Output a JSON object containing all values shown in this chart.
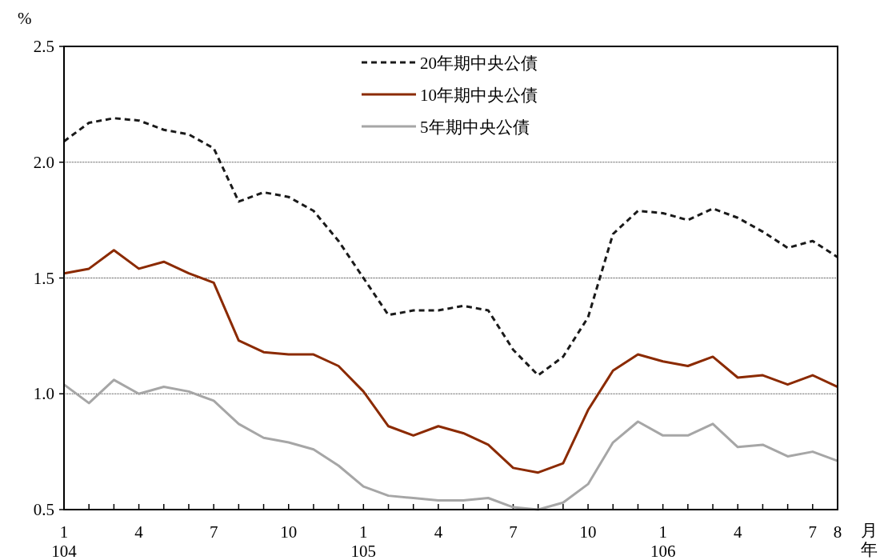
{
  "chart_data": {
    "type": "line",
    "ylabel": "%",
    "xlabel": "月年",
    "categories": [
      "1\n104",
      null,
      null,
      "4",
      null,
      null,
      "7",
      null,
      null,
      "10",
      null,
      null,
      "1\n105",
      null,
      null,
      "4",
      null,
      null,
      "7",
      null,
      null,
      "10",
      null,
      null,
      "1\n106",
      null,
      null,
      "4",
      null,
      null,
      "7",
      "8"
    ],
    "ylim": [
      0.5,
      2.5
    ],
    "yticks": [
      {
        "value": 0.5,
        "label": "0.5"
      },
      {
        "value": 1,
        "label": "1.0"
      },
      {
        "value": 1.5,
        "label": "1.5"
      },
      {
        "value": 2,
        "label": "2.0"
      },
      {
        "value": 2.5,
        "label": "2.5"
      }
    ],
    "grid": "y",
    "legend": "top",
    "series": [
      {
        "name": "20年期中央公債",
        "color": "#1a1a1a",
        "line_style": "dashed",
        "values": [
          2.09,
          2.17,
          2.19,
          2.18,
          2.14,
          2.12,
          2.06,
          1.83,
          1.87,
          1.85,
          1.79,
          1.66,
          1.5,
          1.34,
          1.36,
          1.36,
          1.38,
          1.36,
          1.19,
          1.08,
          1.16,
          1.33,
          1.69,
          1.79,
          1.78,
          1.75,
          1.8,
          1.76,
          1.7,
          1.63,
          1.66,
          1.59
        ]
      },
      {
        "name": "10年期中央公債",
        "color": "#8b2a00",
        "line_style": "solid",
        "values": [
          1.52,
          1.54,
          1.62,
          1.54,
          1.57,
          1.52,
          1.48,
          1.23,
          1.18,
          1.17,
          1.17,
          1.12,
          1.01,
          0.86,
          0.82,
          0.86,
          0.83,
          0.78,
          0.68,
          0.66,
          0.7,
          0.93,
          1.1,
          1.17,
          1.14,
          1.12,
          1.16,
          1.07,
          1.08,
          1.04,
          1.08,
          1.03
        ]
      },
      {
        "name": "5年期中央公債",
        "color": "#a6a6a6",
        "line_style": "solid",
        "values": [
          1.04,
          0.96,
          1.06,
          1.0,
          1.03,
          1.01,
          0.97,
          0.87,
          0.81,
          0.79,
          0.76,
          0.69,
          0.6,
          0.56,
          0.55,
          0.54,
          0.54,
          0.55,
          0.51,
          0.5,
          0.53,
          0.61,
          0.79,
          0.88,
          0.82,
          0.82,
          0.87,
          0.77,
          0.78,
          0.73,
          0.75,
          0.71
        ]
      }
    ]
  }
}
